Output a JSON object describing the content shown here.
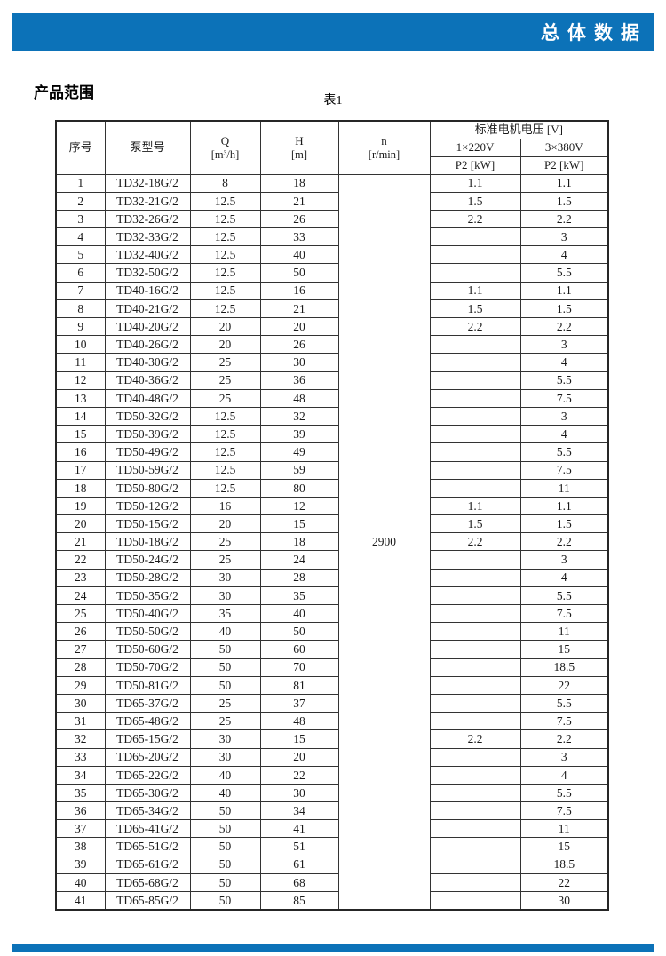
{
  "page": {
    "top_banner": {
      "title": "总体数据"
    },
    "section_title": "产品范围",
    "table_caption": "表1"
  },
  "colors": {
    "banner_blue": "#0c72b8"
  },
  "table": {
    "headers": {
      "no": "序号",
      "model": "泵型号",
      "q_symbol": "Q",
      "q_unit": "[m³/h]",
      "h_symbol": "H",
      "h_unit": "[m]",
      "n_symbol": "n",
      "n_unit": "[r/min]",
      "voltage_group": "标准电机电压 [V]",
      "v220": "1×220V",
      "v380": "3×380V",
      "p2_220": "P2 [kW]",
      "p2_380": "P2 [kW]"
    },
    "n_value": "2900",
    "rows": [
      {
        "no": "1",
        "model": "TD32-18G/2",
        "q": "8",
        "h": "18",
        "p220": "1.1",
        "p380": "1.1"
      },
      {
        "no": "2",
        "model": "TD32-21G/2",
        "q": "12.5",
        "h": "21",
        "p220": "1.5",
        "p380": "1.5"
      },
      {
        "no": "3",
        "model": "TD32-26G/2",
        "q": "12.5",
        "h": "26",
        "p220": "2.2",
        "p380": "2.2"
      },
      {
        "no": "4",
        "model": "TD32-33G/2",
        "q": "12.5",
        "h": "33",
        "p220": "",
        "p380": "3"
      },
      {
        "no": "5",
        "model": "TD32-40G/2",
        "q": "12.5",
        "h": "40",
        "p220": "",
        "p380": "4"
      },
      {
        "no": "6",
        "model": "TD32-50G/2",
        "q": "12.5",
        "h": "50",
        "p220": "",
        "p380": "5.5"
      },
      {
        "no": "7",
        "model": "TD40-16G/2",
        "q": "12.5",
        "h": "16",
        "p220": "1.1",
        "p380": "1.1"
      },
      {
        "no": "8",
        "model": "TD40-21G/2",
        "q": "12.5",
        "h": "21",
        "p220": "1.5",
        "p380": "1.5"
      },
      {
        "no": "9",
        "model": "TD40-20G/2",
        "q": "20",
        "h": "20",
        "p220": "2.2",
        "p380": "2.2"
      },
      {
        "no": "10",
        "model": "TD40-26G/2",
        "q": "20",
        "h": "26",
        "p220": "",
        "p380": "3"
      },
      {
        "no": "11",
        "model": "TD40-30G/2",
        "q": "25",
        "h": "30",
        "p220": "",
        "p380": "4"
      },
      {
        "no": "12",
        "model": "TD40-36G/2",
        "q": "25",
        "h": "36",
        "p220": "",
        "p380": "5.5"
      },
      {
        "no": "13",
        "model": "TD40-48G/2",
        "q": "25",
        "h": "48",
        "p220": "",
        "p380": "7.5"
      },
      {
        "no": "14",
        "model": "TD50-32G/2",
        "q": "12.5",
        "h": "32",
        "p220": "",
        "p380": "3"
      },
      {
        "no": "15",
        "model": "TD50-39G/2",
        "q": "12.5",
        "h": "39",
        "p220": "",
        "p380": "4"
      },
      {
        "no": "16",
        "model": "TD50-49G/2",
        "q": "12.5",
        "h": "49",
        "p220": "",
        "p380": "5.5"
      },
      {
        "no": "17",
        "model": "TD50-59G/2",
        "q": "12.5",
        "h": "59",
        "p220": "",
        "p380": "7.5"
      },
      {
        "no": "18",
        "model": "TD50-80G/2",
        "q": "12.5",
        "h": "80",
        "p220": "",
        "p380": "11"
      },
      {
        "no": "19",
        "model": "TD50-12G/2",
        "q": "16",
        "h": "12",
        "p220": "1.1",
        "p380": "1.1"
      },
      {
        "no": "20",
        "model": "TD50-15G/2",
        "q": "20",
        "h": "15",
        "p220": "1.5",
        "p380": "1.5"
      },
      {
        "no": "21",
        "model": "TD50-18G/2",
        "q": "25",
        "h": "18",
        "p220": "2.2",
        "p380": "2.2"
      },
      {
        "no": "22",
        "model": "TD50-24G/2",
        "q": "25",
        "h": "24",
        "p220": "",
        "p380": "3"
      },
      {
        "no": "23",
        "model": "TD50-28G/2",
        "q": "30",
        "h": "28",
        "p220": "",
        "p380": "4"
      },
      {
        "no": "24",
        "model": "TD50-35G/2",
        "q": "30",
        "h": "35",
        "p220": "",
        "p380": "5.5"
      },
      {
        "no": "25",
        "model": "TD50-40G/2",
        "q": "35",
        "h": "40",
        "p220": "",
        "p380": "7.5"
      },
      {
        "no": "26",
        "model": "TD50-50G/2",
        "q": "40",
        "h": "50",
        "p220": "",
        "p380": "11"
      },
      {
        "no": "27",
        "model": "TD50-60G/2",
        "q": "50",
        "h": "60",
        "p220": "",
        "p380": "15"
      },
      {
        "no": "28",
        "model": "TD50-70G/2",
        "q": "50",
        "h": "70",
        "p220": "",
        "p380": "18.5"
      },
      {
        "no": "29",
        "model": "TD50-81G/2",
        "q": "50",
        "h": "81",
        "p220": "",
        "p380": "22"
      },
      {
        "no": "30",
        "model": "TD65-37G/2",
        "q": "25",
        "h": "37",
        "p220": "",
        "p380": "5.5"
      },
      {
        "no": "31",
        "model": "TD65-48G/2",
        "q": "25",
        "h": "48",
        "p220": "",
        "p380": "7.5"
      },
      {
        "no": "32",
        "model": "TD65-15G/2",
        "q": "30",
        "h": "15",
        "p220": "2.2",
        "p380": "2.2"
      },
      {
        "no": "33",
        "model": "TD65-20G/2",
        "q": "30",
        "h": "20",
        "p220": "",
        "p380": "3"
      },
      {
        "no": "34",
        "model": "TD65-22G/2",
        "q": "40",
        "h": "22",
        "p220": "",
        "p380": "4"
      },
      {
        "no": "35",
        "model": "TD65-30G/2",
        "q": "40",
        "h": "30",
        "p220": "",
        "p380": "5.5"
      },
      {
        "no": "36",
        "model": "TD65-34G/2",
        "q": "50",
        "h": "34",
        "p220": "",
        "p380": "7.5"
      },
      {
        "no": "37",
        "model": "TD65-41G/2",
        "q": "50",
        "h": "41",
        "p220": "",
        "p380": "11"
      },
      {
        "no": "38",
        "model": "TD65-51G/2",
        "q": "50",
        "h": "51",
        "p220": "",
        "p380": "15"
      },
      {
        "no": "39",
        "model": "TD65-61G/2",
        "q": "50",
        "h": "61",
        "p220": "",
        "p380": "18.5"
      },
      {
        "no": "40",
        "model": "TD65-68G/2",
        "q": "50",
        "h": "68",
        "p220": "",
        "p380": "22"
      },
      {
        "no": "41",
        "model": "TD65-85G/2",
        "q": "50",
        "h": "85",
        "p220": "",
        "p380": "30"
      }
    ]
  }
}
